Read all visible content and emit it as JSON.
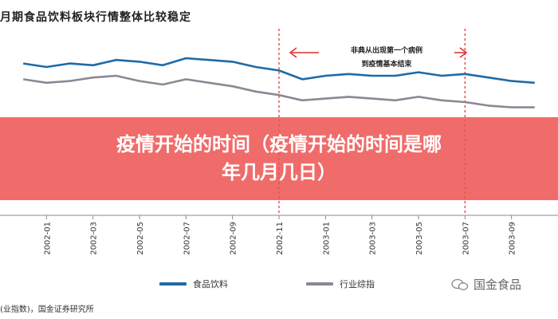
{
  "title": "月期食品饮料板块行情整体比较稳定",
  "source": "(业指数)，国金证券研究所",
  "annotation": {
    "line1": "非典从出现第一个病例",
    "line2": "到疫情基本结束"
  },
  "banner": {
    "line1": "疫情开始的时间（疫情开始的时间是哪",
    "line2": "年几月几日）"
  },
  "watermark": {
    "text": "国金食品"
  },
  "colors": {
    "food_beverage": "#1f6aa5",
    "industry_index": "#8c8894",
    "banner": "#ec5452",
    "event_lines": "#d9302c"
  },
  "chart_data": {
    "type": "line",
    "title": "月期食品饮料板块行情整体比较稳定",
    "x_ticks": [
      "2002-01",
      "2002-03",
      "2002-05",
      "2002-07",
      "2002-09",
      "2002-11",
      "2003-01",
      "2003-03",
      "2003-05",
      "2003-07",
      "2003-09"
    ],
    "xlim": [
      "2001-11",
      "2003-11"
    ],
    "ylim": [
      0,
      100
    ],
    "event_lines": [
      "2002-11",
      "2003-07"
    ],
    "legend": {
      "placement": "bottom-center"
    },
    "x": [
      "2001-12",
      "2002-01",
      "2002-02",
      "2002-03",
      "2002-04",
      "2002-05",
      "2002-06",
      "2002-07",
      "2002-08",
      "2002-09",
      "2002-10",
      "2002-11",
      "2002-12",
      "2003-01",
      "2003-02",
      "2003-03",
      "2003-04",
      "2003-05",
      "2003-06",
      "2003-07",
      "2003-08",
      "2003-09",
      "2003-10"
    ],
    "series": [
      {
        "name": "食品饮料",
        "values": [
          82,
          80,
          82,
          81,
          84,
          83,
          81,
          85,
          84,
          83,
          80,
          78,
          73,
          75,
          76,
          75,
          75,
          77,
          75,
          76,
          74,
          72,
          71
        ]
      },
      {
        "name": "行业综指",
        "values": [
          73,
          71,
          72,
          74,
          75,
          72,
          70,
          73,
          71,
          69,
          66,
          64,
          61,
          62,
          63,
          62,
          61,
          63,
          61,
          60,
          58,
          57,
          57
        ]
      }
    ]
  }
}
